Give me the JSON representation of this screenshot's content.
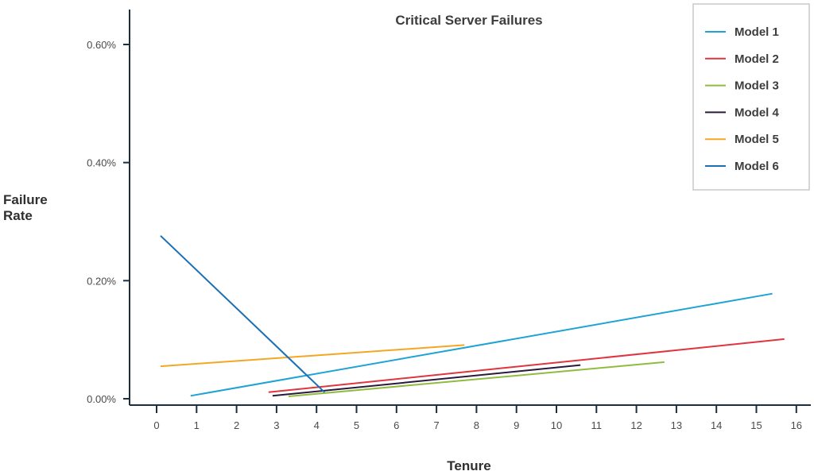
{
  "chart_data": {
    "type": "line",
    "title": "Critical Server Failures",
    "xlabel": "Tenure",
    "ylabel": [
      "Failure",
      "Rate"
    ],
    "xlim": [
      -0.6,
      16.4
    ],
    "ylim": [
      0,
      0.0065
    ],
    "x_ticks": [
      0,
      1,
      2,
      3,
      4,
      5,
      6,
      7,
      8,
      9,
      10,
      11,
      12,
      13,
      14,
      15,
      16
    ],
    "y_ticks": [
      {
        "value": 0.0,
        "label": "0.00%"
      },
      {
        "value": 0.002,
        "label": "0.20%"
      },
      {
        "value": 0.004,
        "label": "0.40%"
      },
      {
        "value": 0.006,
        "label": "0.60%"
      }
    ],
    "grid": false,
    "legend_position": "top-right",
    "series": [
      {
        "name": "Model 1",
        "color": "#1fa3d4",
        "x": [
          0.85,
          15.4
        ],
        "y": [
          5e-05,
          0.00178
        ]
      },
      {
        "name": "Model 2",
        "color": "#e0343e",
        "x": [
          2.8,
          15.7
        ],
        "y": [
          0.00011,
          0.00101
        ]
      },
      {
        "name": "Model 3",
        "color": "#8fbc3f",
        "x": [
          3.3,
          12.7
        ],
        "y": [
          4e-05,
          0.00062
        ]
      },
      {
        "name": "Model 4",
        "color": "#2a1a3a",
        "x": [
          2.9,
          10.6
        ],
        "y": [
          5e-05,
          0.00057
        ]
      },
      {
        "name": "Model 5",
        "color": "#f5a623",
        "x": [
          0.1,
          7.7
        ],
        "y": [
          0.00055,
          0.00091
        ]
      },
      {
        "name": "Model 6",
        "color": "#1b6fb5",
        "x": [
          0.1,
          4.2
        ],
        "y": [
          0.00276,
          0.00011
        ]
      }
    ]
  }
}
